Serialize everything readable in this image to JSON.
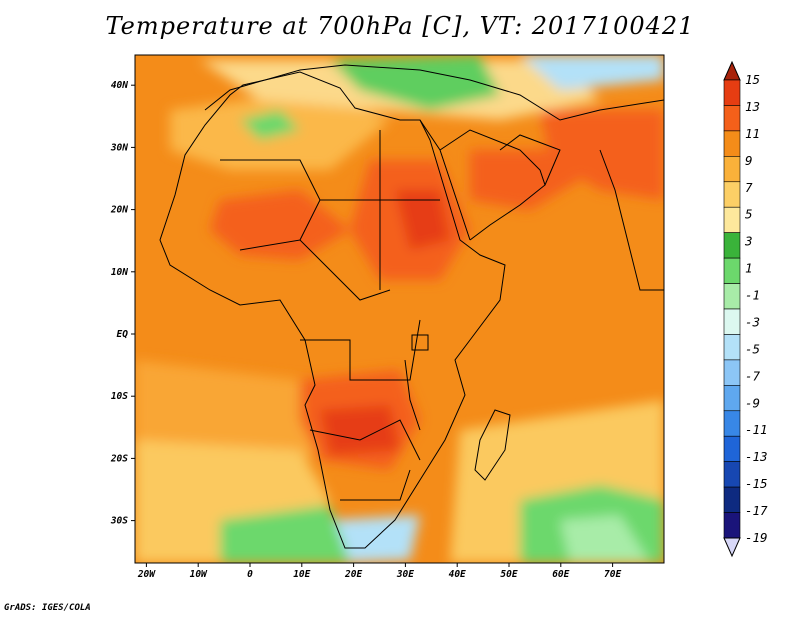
{
  "title": "Temperature at 700hPa [C], VT: 2017100421",
  "credit": "GrADS: IGES/COLA",
  "map": {
    "region": "Africa and Arabian Peninsula",
    "lon_ticks": [
      {
        "lon": -20,
        "label": "20W"
      },
      {
        "lon": -10,
        "label": "10W"
      },
      {
        "lon": 0,
        "label": "0"
      },
      {
        "lon": 10,
        "label": "10E"
      },
      {
        "lon": 20,
        "label": "20E"
      },
      {
        "lon": 30,
        "label": "30E"
      },
      {
        "lon": 40,
        "label": "40E"
      },
      {
        "lon": 50,
        "label": "50E"
      },
      {
        "lon": 60,
        "label": "60E"
      },
      {
        "lon": 70,
        "label": "70E"
      }
    ],
    "lat_ticks": [
      {
        "lat": 40,
        "label": "40N"
      },
      {
        "lat": 30,
        "label": "30N"
      },
      {
        "lat": 20,
        "label": "20N"
      },
      {
        "lat": 10,
        "label": "10N"
      },
      {
        "lat": 0,
        "label": "EQ"
      },
      {
        "lat": -10,
        "label": "10S"
      },
      {
        "lat": -20,
        "label": "20S"
      },
      {
        "lat": -30,
        "label": "30S"
      }
    ]
  },
  "colorbar": {
    "units": "C",
    "labels": [
      "15",
      "13",
      "11",
      "9",
      "7",
      "5",
      "3",
      "1",
      "-1",
      "-3",
      "-5",
      "-7",
      "-9",
      "-11",
      "-13",
      "-15",
      "-17",
      "-19"
    ],
    "colors": [
      "#a8230b",
      "#e63d12",
      "#f4601a",
      "#f48c19",
      "#fab13a",
      "#fccf66",
      "#fde89c",
      "#3ab33a",
      "#6cd86c",
      "#a8eca8",
      "#dcf8f0",
      "#b3e1f8",
      "#8cc6f6",
      "#5fa8ef",
      "#3887e6",
      "#1f65d8",
      "#1747b2",
      "#0e2a80",
      "#1a147a",
      "#d8d8f8"
    ]
  }
}
